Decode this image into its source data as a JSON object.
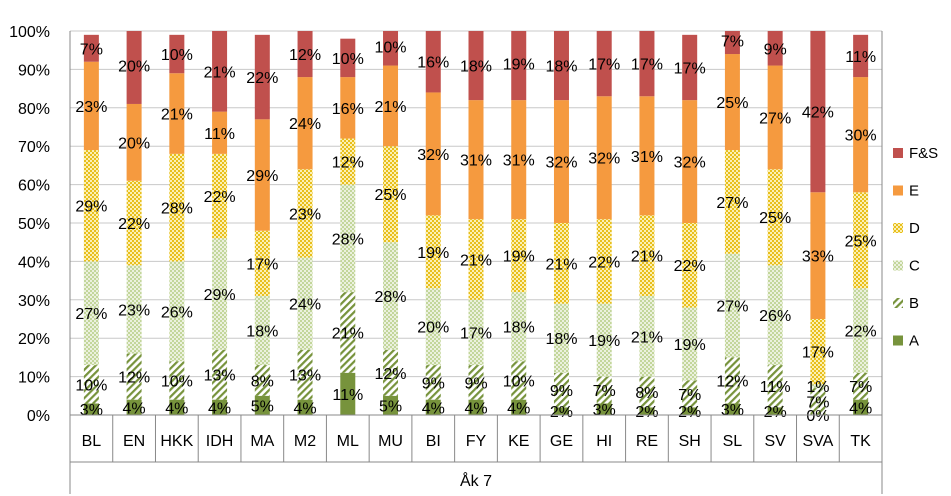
{
  "chart_data": {
    "type": "bar",
    "stacked": true,
    "percent": true,
    "group_label": "Åk 7",
    "categories": [
      "BL",
      "EN",
      "HKK",
      "IDH",
      "MA",
      "M2",
      "ML",
      "MU",
      "BI",
      "FY",
      "KE",
      "GE",
      "HI",
      "RE",
      "SH",
      "SL",
      "SV",
      "SVA",
      "TK"
    ],
    "ylim": [
      0,
      100
    ],
    "yticks": [
      "0%",
      "10%",
      "20%",
      "30%",
      "40%",
      "50%",
      "60%",
      "70%",
      "80%",
      "90%",
      "100%"
    ],
    "legend_position": "right",
    "grid": true,
    "series": [
      {
        "name": "A",
        "color": "#77933c",
        "pattern": "solid",
        "values": [
          3,
          4,
          4,
          4,
          5,
          4,
          11,
          5,
          4,
          4,
          4,
          2,
          3,
          2,
          2,
          3,
          2,
          0,
          4
        ],
        "labels": [
          "3%",
          "4%",
          "4%",
          "4%",
          "5%",
          "4%",
          "11%",
          "5%",
          "4%",
          "4%",
          "4%",
          "2%",
          "3%",
          "2%",
          "2%",
          "3%",
          "2%",
          "0%",
          "4%"
        ]
      },
      {
        "name": "B",
        "color": "#77933c",
        "pattern": "diagonal",
        "values": [
          10,
          12,
          10,
          13,
          8,
          13,
          21,
          12,
          9,
          9,
          10,
          9,
          7,
          8,
          7,
          12,
          11,
          7,
          7
        ],
        "labels": [
          "10%",
          "12%",
          "10%",
          "13%",
          "8%",
          "13%",
          "21%",
          "12%",
          "9%",
          "9%",
          "10%",
          "9%",
          "7%",
          "8%",
          "7%",
          "12%",
          "11%",
          "7%",
          "7%"
        ]
      },
      {
        "name": "C",
        "color": "#c3d69b",
        "pattern": "dots",
        "values": [
          27,
          23,
          26,
          29,
          18,
          24,
          28,
          28,
          20,
          17,
          18,
          18,
          19,
          21,
          19,
          27,
          26,
          1,
          22
        ],
        "labels": [
          "27%",
          "23%",
          "26%",
          "29%",
          "18%",
          "24%",
          "28%",
          "28%",
          "20%",
          "17%",
          "18%",
          "18%",
          "19%",
          "21%",
          "19%",
          "27%",
          "26%",
          "1%",
          "22%"
        ]
      },
      {
        "name": "D",
        "color": "#f2d23f",
        "pattern": "dots",
        "values": [
          29,
          22,
          28,
          22,
          17,
          23,
          12,
          25,
          19,
          21,
          19,
          21,
          22,
          21,
          22,
          27,
          25,
          17,
          25
        ],
        "labels": [
          "29%",
          "22%",
          "28%",
          "22%",
          "17%",
          "23%",
          "12%",
          "25%",
          "19%",
          "21%",
          "19%",
          "21%",
          "22%",
          "21%",
          "22%",
          "27%",
          "25%",
          "17%",
          "25%"
        ]
      },
      {
        "name": "E",
        "color": "#f59a3f",
        "pattern": "solid",
        "values": [
          23,
          20,
          21,
          11,
          29,
          24,
          16,
          21,
          32,
          31,
          31,
          32,
          32,
          31,
          32,
          25,
          27,
          33,
          30
        ],
        "labels": [
          "23%",
          "20%",
          "21%",
          "11%",
          "29%",
          "24%",
          "16%",
          "21%",
          "32%",
          "31%",
          "31%",
          "32%",
          "32%",
          "31%",
          "32%",
          "25%",
          "27%",
          "33%",
          "30%"
        ]
      },
      {
        "name": "F&S",
        "color": "#c0504d",
        "pattern": "solid",
        "values": [
          7,
          20,
          10,
          21,
          22,
          12,
          10,
          10,
          16,
          18,
          19,
          18,
          17,
          17,
          17,
          7,
          9,
          42,
          11
        ],
        "labels": [
          "7%",
          "20%",
          "10%",
          "21%",
          "22%",
          "12%",
          "10%",
          "10%",
          "16%",
          "18%",
          "19%",
          "18%",
          "17%",
          "17%",
          "17%",
          "7%",
          "9%",
          "42%",
          "11%"
        ]
      }
    ]
  }
}
